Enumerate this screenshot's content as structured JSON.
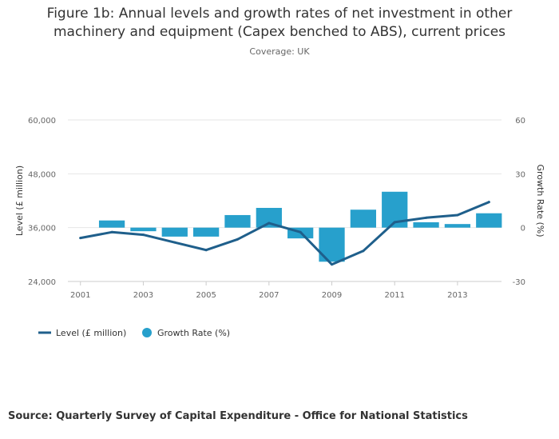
{
  "chart_data": {
    "type": "bar+line",
    "title": "Figure 1b: Annual levels and growth rates of net investment in other machinery and equipment (Capex benched to ABS), current prices",
    "title_line1": "Figure 1b: Annual levels and growth rates of net investment in other",
    "title_line2": "machinery and equipment (Capex benched to ABS), current prices",
    "subtitle": "Coverage: UK",
    "source": "Source: Quarterly Survey of Capital Expenditure - Office for National Statistics",
    "x": [
      2001,
      2002,
      2003,
      2004,
      2005,
      2006,
      2007,
      2008,
      2009,
      2010,
      2011,
      2012,
      2013,
      2014
    ],
    "xlim": [
      2000.6,
      2014.4
    ],
    "x_ticks": [
      "2001",
      "2003",
      "2005",
      "2007",
      "2009",
      "2011",
      "2013"
    ],
    "y_left": {
      "label": "Level (£ million)",
      "ylim": [
        24000,
        60000
      ],
      "ticks": [
        "24,000",
        "36,000",
        "48,000",
        "60,000"
      ],
      "tick_values": [
        24000,
        36000,
        48000,
        60000
      ]
    },
    "y_right": {
      "label": "Growth Rate (%)",
      "ylim": [
        -30,
        60
      ],
      "ticks": [
        "-30",
        "0",
        "30",
        "60"
      ],
      "tick_values": [
        -30,
        0,
        30,
        60
      ]
    },
    "series": [
      {
        "name": "Level (£ million)",
        "type": "line",
        "axis": "left",
        "color": "#1f5f8b",
        "values": [
          33700,
          35000,
          34400,
          32700,
          31000,
          33400,
          37000,
          35000,
          27800,
          30800,
          37200,
          38200,
          38800,
          41700
        ]
      },
      {
        "name": "Growth Rate (%)",
        "type": "bar",
        "axis": "right",
        "color": "#27a0cc",
        "values": [
          null,
          4,
          -2,
          -5,
          -5,
          7,
          11,
          -6,
          -19,
          10,
          20,
          3,
          2,
          8
        ]
      }
    ],
    "legend": [
      "Level (£ million)",
      "Growth Rate (%)"
    ],
    "legend_position": "bottom-left",
    "grid": true
  }
}
